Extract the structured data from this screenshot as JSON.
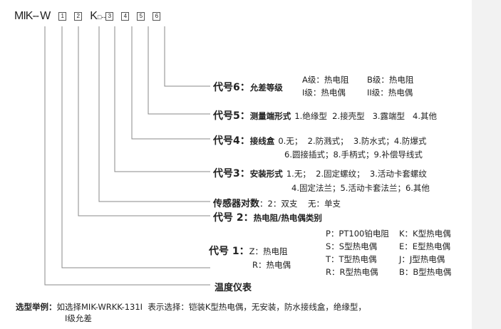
{
  "model": {
    "prefix": "MIK--",
    "w": "W",
    "k": "K",
    "k_sub": "□--",
    "boxes": [
      "1",
      "2",
      "3",
      "4",
      "5",
      "6"
    ]
  },
  "rows": {
    "code6": {
      "label": "代号6：",
      "title": "允差等级",
      "opts": [
        "A级：热电阻",
        "B级：热电阻",
        "I级：热电偶",
        "II级：热电偶"
      ]
    },
    "code5": {
      "label": "代号5：",
      "title": "测量端形式",
      "opts": "1.绝缘型  2.接壳型   3.露端型   4.其他"
    },
    "code4": {
      "label": "代号4：",
      "title": "接线盒",
      "line1": "0.无；  2.防溅式；  3.防水式；4.防爆式",
      "line2": "6.圆接插式；8.手柄式；9.补偿导线式"
    },
    "code3": {
      "label": "代号3：",
      "title": "安装形式",
      "line1": "1.无；  2.固定螺纹；  3.活动卡套螺纹",
      "line2": "4.固定法兰；5.活动卡套法兰；6.其他"
    },
    "pairs": {
      "label": "传感器对数",
      "opts": "：2：双支    无：单支"
    },
    "code2": {
      "label": "代号 2：",
      "title": "热电阻/热电偶类别"
    },
    "code1": {
      "label": "代号 1：",
      "opt1": "Z：热电阻",
      "opt2": "R：热电偶",
      "types": [
        "P：PT100铂电阻",
        "K：K型热电偶",
        "S：S型热电偶",
        "E：E型热电偶",
        "T：T型热电偶",
        "J：J型热电偶",
        "R：R型热电偶",
        "B：B型热电偶"
      ]
    },
    "meter": {
      "label": "温度仪表"
    }
  },
  "example": {
    "label": "选型举例：",
    "text": "如选择MIK-WRKK-131I  表示选择：铠装K型热电偶，无安装，防水接线盒，绝缘型，",
    "text2": "I级允差"
  }
}
